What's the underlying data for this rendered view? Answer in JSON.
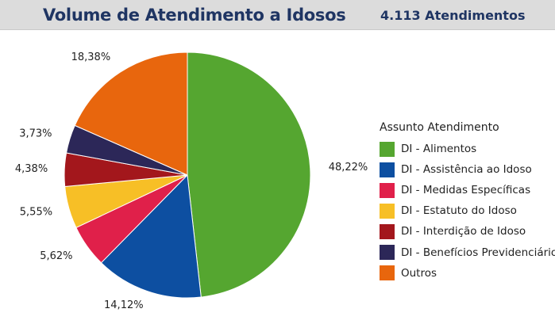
{
  "header": {
    "title": "Volume de Atendimento a Idosos",
    "total": "4.113 Atendimentos"
  },
  "chart_data": {
    "type": "pie",
    "title": "Volume de Atendimento a Idosos",
    "subtitle": "4.113 Atendimentos",
    "legend_title": "Assunto Atendimento",
    "legend_position": "right",
    "slices": [
      {
        "label": "DI - Alimentos",
        "value": 48.22,
        "value_label": "48,22%",
        "color": "#55a630"
      },
      {
        "label": "DI - Assistência ao Idoso",
        "value": 14.12,
        "value_label": "14,12%",
        "color": "#0d4fa1"
      },
      {
        "label": "DI - Medidas Específicas",
        "value": 5.62,
        "value_label": "5,62%",
        "color": "#e0204a"
      },
      {
        "label": "DI - Estatuto do Idoso",
        "value": 5.55,
        "value_label": "5,55%",
        "color": "#f7bf26"
      },
      {
        "label": "DI - Interdição de Idoso",
        "value": 4.38,
        "value_label": "4,38%",
        "color": "#a3171c"
      },
      {
        "label": "DI - Benefícios Previdenciários",
        "value": 3.73,
        "value_label": "3,73%",
        "color": "#2c2758"
      },
      {
        "label": "Outros",
        "value": 18.38,
        "value_label": "18,38%",
        "color": "#e8660d"
      }
    ]
  }
}
